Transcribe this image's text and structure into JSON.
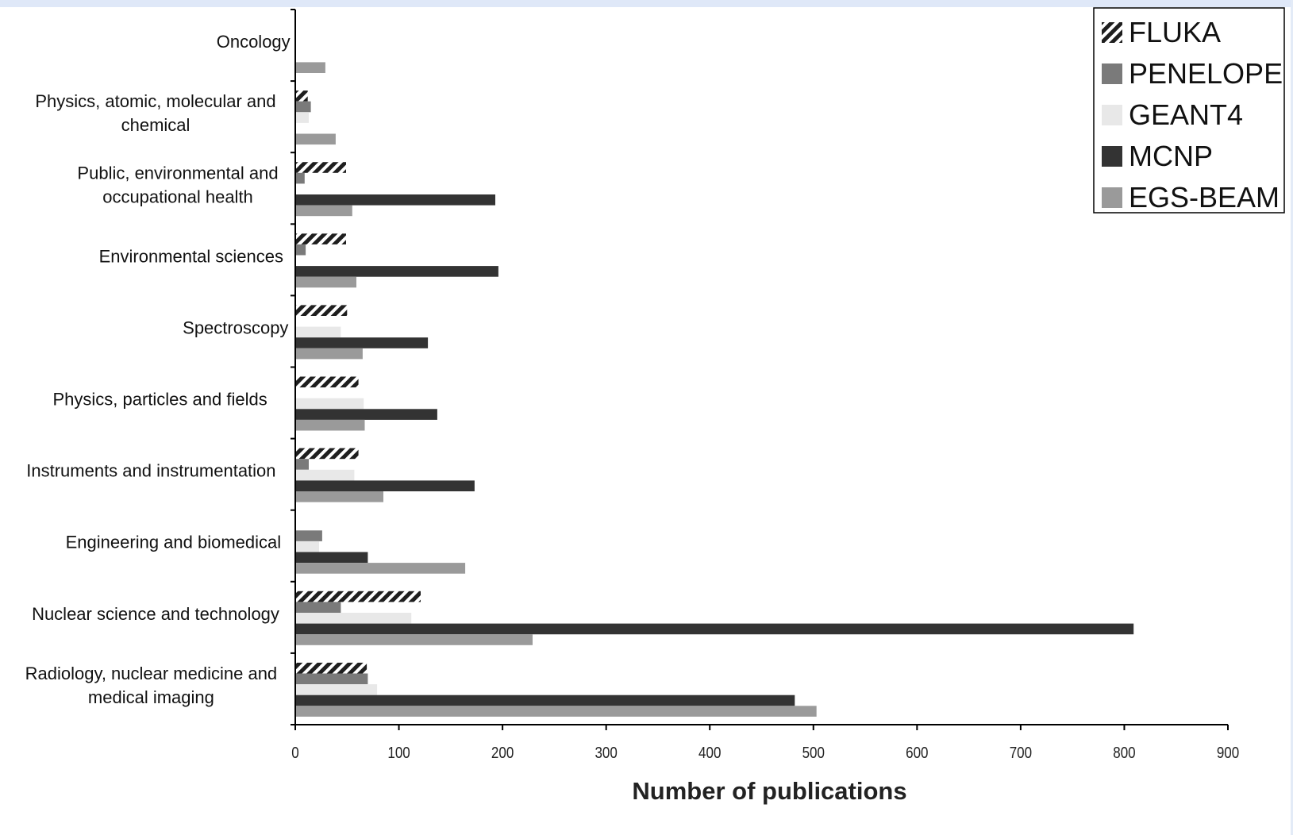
{
  "chart_data": {
    "type": "bar",
    "orientation": "horizontal",
    "xlabel": "Number of publications",
    "ylabel": "",
    "xlim": [
      0,
      900
    ],
    "x_ticks": [
      "0",
      "100",
      "200",
      "300",
      "400",
      "500",
      "600",
      "700",
      "800",
      "900"
    ],
    "categories": [
      "Oncology",
      "Physics, atomic, molecular and chemical",
      "Public, environmental and occupational health",
      "Environmental sciences",
      "Spectroscopy",
      "Physics, particles and fields",
      "Instruments and instrumentation",
      "Engineering and biomedical",
      "Nuclear science and technology",
      "Radiology, nuclear medicine and medical imaging"
    ],
    "category_lines": [
      [
        "Oncology"
      ],
      [
        "Physics, atomic, molecular and",
        "chemical"
      ],
      [
        "Public, environmental and",
        "occupational health"
      ],
      [
        "Environmental sciences"
      ],
      [
        "Spectroscopy"
      ],
      [
        "Physics, particles and fields"
      ],
      [
        "Instruments and instrumentation"
      ],
      [
        "Engineering and biomedical"
      ],
      [
        "Nuclear science and technology"
      ],
      [
        "Radiology, nuclear medicine and",
        "medical imaging"
      ]
    ],
    "series": [
      {
        "name": "FLUKA",
        "pattern": "hatched",
        "color": "#222222",
        "values": [
          0,
          12,
          49,
          49,
          50,
          61,
          61,
          0,
          121,
          69
        ]
      },
      {
        "name": "PENELOPE",
        "color": "#7a7a7a",
        "values": [
          0,
          15,
          9,
          10,
          0,
          0,
          13,
          26,
          44,
          70
        ]
      },
      {
        "name": "GEANT4",
        "color": "#e8e8e8",
        "values": [
          0,
          13,
          0,
          0,
          44,
          66,
          57,
          23,
          112,
          79
        ]
      },
      {
        "name": "MCNP",
        "color": "#333333",
        "values": [
          0,
          0,
          193,
          196,
          128,
          137,
          173,
          70,
          809,
          482
        ]
      },
      {
        "name": "EGS-BEAM",
        "color": "#9a9a9a",
        "values": [
          29,
          39,
          55,
          59,
          65,
          67,
          85,
          164,
          229,
          503
        ]
      }
    ],
    "legend_position": "top-right",
    "grid": false
  }
}
